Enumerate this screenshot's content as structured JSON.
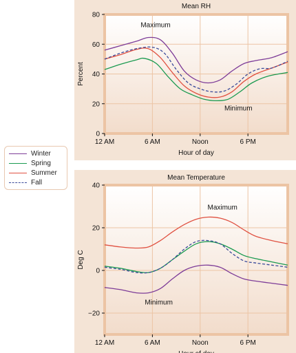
{
  "chart_data": [
    {
      "type": "line",
      "title": "Mean RH",
      "xlabel": "Hour of day",
      "ylabel": "Percent",
      "ylim": [
        0,
        80
      ],
      "xlim": [
        0,
        23
      ],
      "yticks": [
        0,
        20,
        40,
        60,
        80
      ],
      "xticks": [
        {
          "x": 0,
          "label": "12 AM"
        },
        {
          "x": 6,
          "label": "6 AM"
        },
        {
          "x": 12,
          "label": "Noon"
        },
        {
          "x": 18,
          "label": "6 PM"
        }
      ],
      "grid": true,
      "annotations": [
        "Maximum",
        "Minimum"
      ],
      "series": [
        {
          "name": "Winter",
          "color": "#7d3c98",
          "dash": false,
          "points": [
            [
              0,
              56
            ],
            [
              2,
              59
            ],
            [
              4,
              62
            ],
            [
              5.5,
              64.5
            ],
            [
              7,
              63
            ],
            [
              8.5,
              54
            ],
            [
              10,
              42
            ],
            [
              11.5,
              36
            ],
            [
              13,
              34
            ],
            [
              14.5,
              36
            ],
            [
              16,
              42
            ],
            [
              17.5,
              47
            ],
            [
              19,
              49
            ],
            [
              21,
              51
            ],
            [
              23,
              55
            ]
          ]
        },
        {
          "name": "Spring",
          "color": "#1a9a50",
          "dash": false,
          "points": [
            [
              0,
              43
            ],
            [
              2,
              46.5
            ],
            [
              4,
              49.5
            ],
            [
              5,
              50.5
            ],
            [
              6.5,
              47
            ],
            [
              8,
              38
            ],
            [
              9.5,
              30
            ],
            [
              11,
              26
            ],
            [
              12.5,
              23
            ],
            [
              14,
              22
            ],
            [
              15.5,
              23
            ],
            [
              17,
              28
            ],
            [
              18.5,
              34
            ],
            [
              20.5,
              38.5
            ],
            [
              23,
              41
            ]
          ]
        },
        {
          "name": "Summer",
          "color": "#e05040",
          "dash": false,
          "points": [
            [
              0,
              50
            ],
            [
              2,
              53
            ],
            [
              4,
              56.5
            ],
            [
              5.5,
              57
            ],
            [
              7,
              51
            ],
            [
              8.5,
              41
            ],
            [
              10,
              32
            ],
            [
              11.5,
              27
            ],
            [
              13,
              24.5
            ],
            [
              14.5,
              24.5
            ],
            [
              16,
              28
            ],
            [
              17.5,
              35
            ],
            [
              19,
              40
            ],
            [
              21,
              44
            ],
            [
              23,
              48
            ]
          ]
        },
        {
          "name": "Fall",
          "color": "#3a4a9a",
          "dash": true,
          "points": [
            [
              0,
              50
            ],
            [
              2,
              54
            ],
            [
              4,
              57
            ],
            [
              6,
              58
            ],
            [
              7.5,
              54
            ],
            [
              9,
              43
            ],
            [
              10.5,
              34
            ],
            [
              12,
              30
            ],
            [
              13.5,
              28
            ],
            [
              15,
              28.5
            ],
            [
              16.5,
              33
            ],
            [
              18,
              40
            ],
            [
              19.5,
              43.5
            ],
            [
              21,
              44
            ],
            [
              23,
              48.5
            ]
          ]
        }
      ]
    },
    {
      "type": "line",
      "title": "Mean Temperature",
      "xlabel": "Hour of day",
      "ylabel": "Deg C",
      "ylim": [
        -30,
        40
      ],
      "xlim": [
        0,
        23
      ],
      "yticks": [
        -20,
        0,
        20,
        40
      ],
      "ytick_labels": [
        "−20",
        "0",
        "20",
        "40"
      ],
      "xticks": [
        {
          "x": 0,
          "label": "12 AM"
        },
        {
          "x": 6,
          "label": "6 AM"
        },
        {
          "x": 12,
          "label": "Noon"
        },
        {
          "x": 18,
          "label": "6 PM"
        }
      ],
      "grid": true,
      "annotations": [
        "Maximum",
        "Minimum"
      ],
      "series": [
        {
          "name": "Winter",
          "color": "#7d3c98",
          "dash": false,
          "points": [
            [
              0,
              -8
            ],
            [
              2,
              -9
            ],
            [
              4,
              -10.5
            ],
            [
              5.5,
              -10.5
            ],
            [
              7,
              -8.5
            ],
            [
              8.5,
              -4
            ],
            [
              10,
              0
            ],
            [
              11.5,
              2
            ],
            [
              13,
              2.5
            ],
            [
              14.5,
              1.5
            ],
            [
              16,
              -1.5
            ],
            [
              17.5,
              -4
            ],
            [
              19,
              -5
            ],
            [
              21,
              -6
            ],
            [
              23,
              -7
            ]
          ]
        },
        {
          "name": "Spring",
          "color": "#1a9a50",
          "dash": false,
          "points": [
            [
              0,
              2
            ],
            [
              2,
              1
            ],
            [
              4,
              -0.5
            ],
            [
              5.5,
              -1
            ],
            [
              7,
              1
            ],
            [
              8.5,
              5
            ],
            [
              10,
              9
            ],
            [
              11.5,
              12.5
            ],
            [
              13,
              13.5
            ],
            [
              14.5,
              12.5
            ],
            [
              16,
              10
            ],
            [
              17.5,
              7
            ],
            [
              19,
              5.5
            ],
            [
              21,
              4
            ],
            [
              23,
              2.5
            ]
          ]
        },
        {
          "name": "Summer",
          "color": "#e05040",
          "dash": false,
          "points": [
            [
              0,
              12
            ],
            [
              2,
              11
            ],
            [
              4,
              10.5
            ],
            [
              5.5,
              11
            ],
            [
              7,
              14
            ],
            [
              8.5,
              18
            ],
            [
              10,
              21.5
            ],
            [
              11.5,
              24
            ],
            [
              13,
              25
            ],
            [
              14.5,
              24.5
            ],
            [
              16,
              22.5
            ],
            [
              17.5,
              19
            ],
            [
              19,
              16
            ],
            [
              21,
              14
            ],
            [
              23,
              12.5
            ]
          ]
        },
        {
          "name": "Fall",
          "color": "#3a4a9a",
          "dash": true,
          "points": [
            [
              0,
              1.5
            ],
            [
              2,
              0.5
            ],
            [
              4,
              -1
            ],
            [
              5.5,
              -1
            ],
            [
              7,
              1
            ],
            [
              8.5,
              5
            ],
            [
              10,
              10
            ],
            [
              11.5,
              13.5
            ],
            [
              13,
              14
            ],
            [
              14.5,
              12.5
            ],
            [
              16,
              8
            ],
            [
              17.5,
              4.5
            ],
            [
              19,
              3.5
            ],
            [
              21,
              2.5
            ],
            [
              23,
              1.5
            ]
          ]
        }
      ]
    }
  ],
  "legend": {
    "items": [
      {
        "label": "Winter",
        "color": "#7d3c98",
        "style": "solid"
      },
      {
        "label": "Spring",
        "color": "#1a9a50",
        "style": "solid"
      },
      {
        "label": "Summer",
        "color": "#e05040",
        "style": "solid"
      },
      {
        "label": "Fall",
        "color": "#3a4a9a",
        "style": "dashed"
      }
    ]
  },
  "colors": {
    "panel_background": "#f4e4d6",
    "plot_border": "#ecc4a4",
    "plot_fill_top": "#ffffff",
    "plot_fill_bottom": "#f2dccb",
    "grid": "#ecc4a4"
  }
}
